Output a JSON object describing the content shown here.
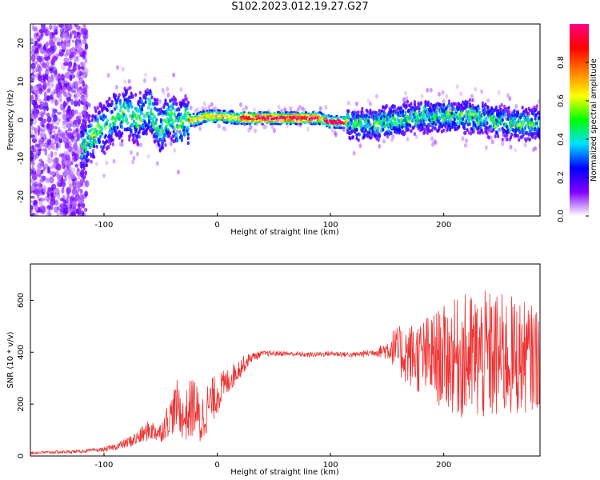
{
  "title": "S102.2023.012.19.27.G27",
  "chart_data": [
    {
      "type": "heatmap",
      "xlabel": "Height of straight line (km)",
      "ylabel": "Frequency (Hz)",
      "xlim": [
        -165,
        285
      ],
      "ylim": [
        -25,
        25
      ],
      "xticks": [
        -100,
        0,
        100,
        200
      ],
      "yticks": [
        -20,
        -10,
        0,
        10,
        20
      ],
      "colorbar": {
        "label": "Normalized spectral amplitude",
        "range": [
          0.0,
          1.0
        ],
        "ticks": [
          "0.0",
          "0.2",
          "0.4",
          "0.6",
          "0.8"
        ],
        "colors": [
          "#ffffff",
          "#8000ff",
          "#0000ff",
          "#00e0ff",
          "#00ff00",
          "#ffff00",
          "#ff8000",
          "#ff0000",
          "#ff0080"
        ]
      },
      "ridge": {
        "x": [
          -120,
          -110,
          -100,
          -90,
          -80,
          -70,
          -60,
          -50,
          -45,
          -40,
          -35,
          -30,
          -20,
          -10,
          0,
          20,
          40,
          60,
          80,
          90,
          95,
          100,
          110,
          115,
          120,
          140,
          160,
          180,
          200,
          220,
          240,
          260,
          280
        ],
        "frequency": [
          -7,
          -4,
          -2,
          1,
          2,
          0,
          3,
          -3,
          0,
          1,
          -2,
          0,
          0,
          1,
          1,
          0.5,
          0.5,
          0.5,
          0.5,
          0.5,
          0,
          -0.5,
          -0.5,
          -0.5,
          -1,
          -1,
          0,
          1,
          1,
          1,
          0,
          -1,
          -1
        ]
      },
      "scatter_region": {
        "x": [
          -165,
          -115
        ],
        "frequency": [
          -25,
          25
        ]
      }
    },
    {
      "type": "line",
      "xlabel": "Height of straight line (km)",
      "ylabel": "SNR (10 * v/v)",
      "xlim": [
        -165,
        285
      ],
      "ylim": [
        0,
        740
      ],
      "xticks": [
        -100,
        0,
        100,
        200
      ],
      "yticks": [
        0,
        200,
        400,
        600
      ],
      "series": [
        {
          "color": "#ee3333",
          "envelope": {
            "x": [
              -165,
              -140,
              -120,
              -100,
              -90,
              -80,
              -70,
              -60,
              -50,
              -45,
              -40,
              -35,
              -30,
              -25,
              -20,
              -15,
              -10,
              0,
              10,
              20,
              30,
              40,
              60,
              80,
              100,
              120,
              140,
              150,
              155,
              160,
              180,
              200,
              220,
              240,
              260,
              280,
              285
            ],
            "mean": [
              12,
              15,
              18,
              25,
              35,
              50,
              70,
              100,
              90,
              130,
              160,
              200,
              140,
              170,
              200,
              120,
              180,
              240,
              290,
              340,
              380,
              395,
              395,
              390,
              395,
              390,
              400,
              410,
              420,
              400,
              380,
              380,
              380,
              380,
              380,
              380,
              380
            ],
            "amp": [
              5,
              6,
              6,
              8,
              12,
              20,
              30,
              40,
              40,
              60,
              80,
              100,
              80,
              120,
              120,
              100,
              100,
              80,
              50,
              40,
              20,
              10,
              10,
              10,
              10,
              10,
              15,
              40,
              70,
              100,
              150,
              200,
              250,
              260,
              240,
              200,
              200
            ]
          }
        }
      ]
    }
  ]
}
